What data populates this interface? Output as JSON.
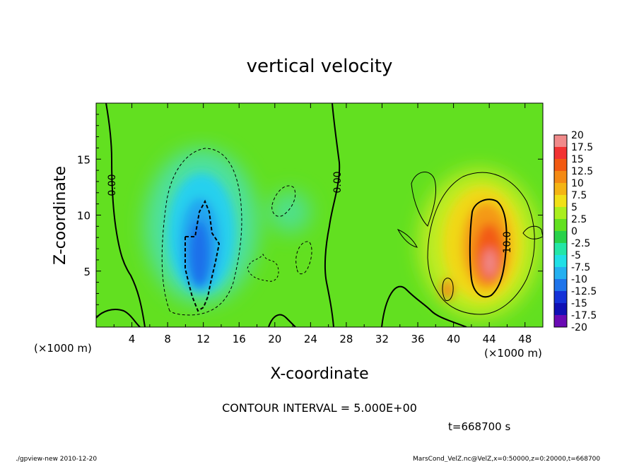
{
  "chart_data": {
    "type": "heatmap",
    "title": "vertical velocity",
    "xlabel": "X-coordinate",
    "ylabel": "Z-coordinate",
    "x_unit": "(×1000 m)",
    "z_unit": "(×1000 m)",
    "xlim": [
      0,
      50
    ],
    "ylim": [
      0,
      20
    ],
    "xticks": [
      4,
      8,
      12,
      16,
      20,
      24,
      28,
      32,
      36,
      40,
      44,
      48
    ],
    "yticks": [
      5,
      10,
      15
    ],
    "colorbar": {
      "labels": [
        "20",
        "17.5",
        "15",
        "12.5",
        "10",
        "7.5",
        "5",
        "2.5",
        "0",
        "-2.5",
        "-5",
        "-7.5",
        "-10",
        "-12.5",
        "-15",
        "-17.5",
        "-20"
      ],
      "bins": [
        {
          "from": 17.5,
          "to": 20,
          "color": "#f08a8a"
        },
        {
          "from": 15,
          "to": 17.5,
          "color": "#f23232"
        },
        {
          "from": 12.5,
          "to": 15,
          "color": "#f25a12"
        },
        {
          "from": 10,
          "to": 12.5,
          "color": "#f48a14"
        },
        {
          "from": 7.5,
          "to": 10,
          "color": "#f4b414"
        },
        {
          "from": 5,
          "to": 7.5,
          "color": "#f0e018"
        },
        {
          "from": 2.5,
          "to": 5,
          "color": "#aaee1e"
        },
        {
          "from": 0,
          "to": 2.5,
          "color": "#62e020"
        },
        {
          "from": -2.5,
          "to": 0,
          "color": "#28d24a"
        },
        {
          "from": -5,
          "to": -2.5,
          "color": "#24e6a6"
        },
        {
          "from": -7.5,
          "to": -5,
          "color": "#20e0e6"
        },
        {
          "from": -10,
          "to": -7.5,
          "color": "#24b0f0"
        },
        {
          "from": -12.5,
          "to": -10,
          "color": "#1e74ea"
        },
        {
          "from": -15,
          "to": -12.5,
          "color": "#1432d8"
        },
        {
          "from": -17.5,
          "to": -15,
          "color": "#1010b4"
        },
        {
          "from": -20,
          "to": -17.5,
          "color": "#6a0ab4"
        }
      ]
    },
    "features": [
      {
        "kind": "updraft",
        "x": 43.5,
        "z": 6.5,
        "peak": 17.5
      },
      {
        "kind": "downdraft",
        "x": 11.5,
        "z": 7.5,
        "peak": -12.5
      }
    ],
    "contour_labels": [
      "0.00",
      "0.00",
      "10.0"
    ],
    "contour_interval": "CONTOUR INTERVAL = 5.000E+00",
    "time": "t=668700 s"
  },
  "footer": {
    "left": "./gpview-new  2010-12-20",
    "right": "MarsCond_VelZ.nc@VelZ,x=0:50000,z=0:20000,t=668700"
  }
}
